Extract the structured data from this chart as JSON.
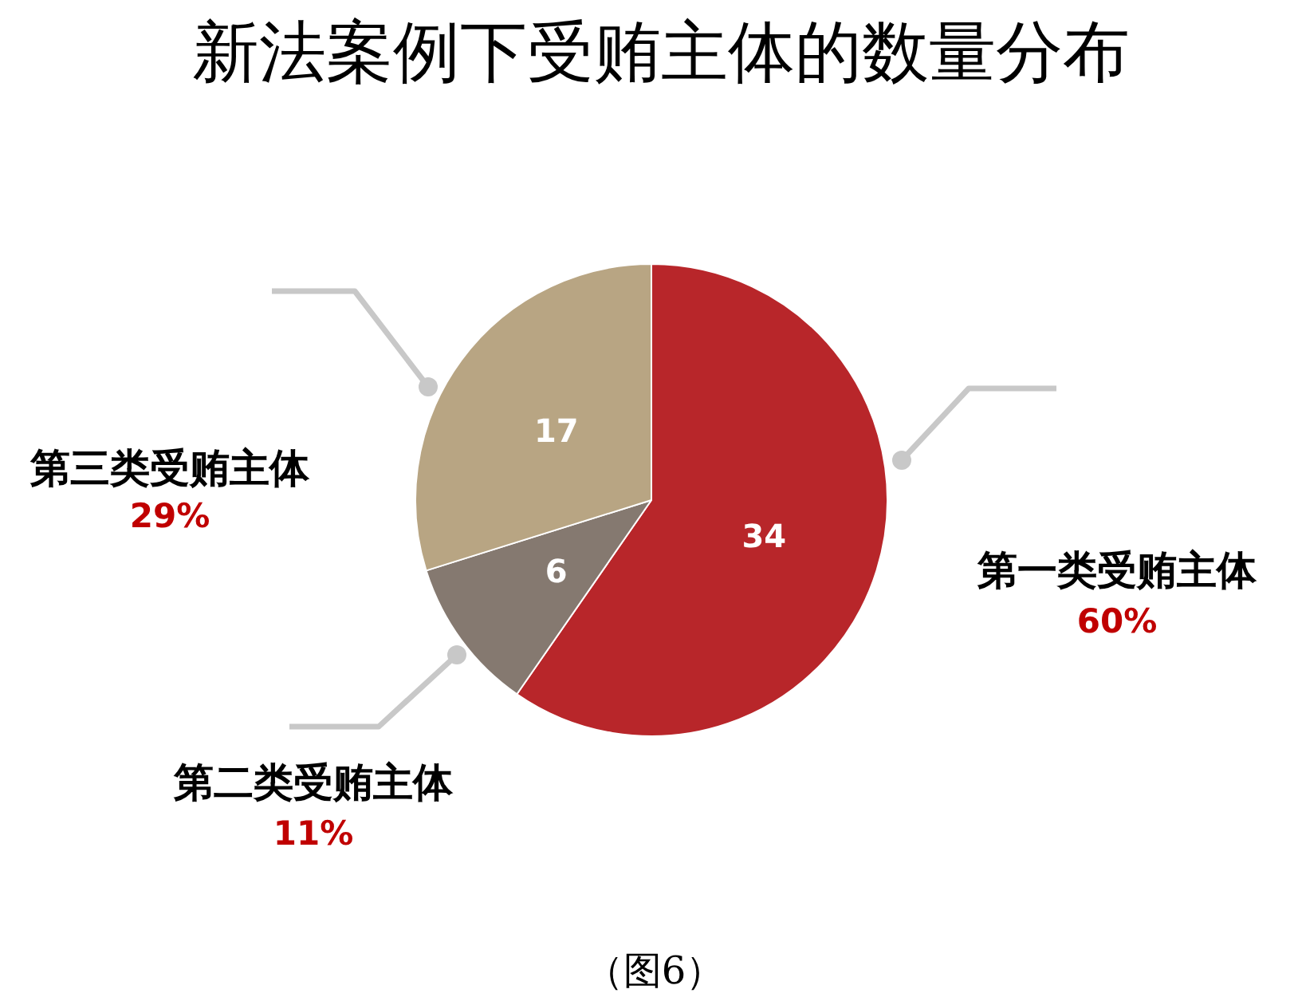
{
  "chart_data": {
    "type": "pie",
    "title": "新法案例下受贿主体的数量分布",
    "categories": [
      "第一类受贿主体",
      "第二类受贿主体",
      "第三类受贿主体"
    ],
    "values": [
      34,
      6,
      17
    ],
    "colors": [
      "#b8262a",
      "#857970",
      "#b8a583"
    ],
    "data_labels": true,
    "annotations": [
      "60%",
      "11%",
      "29%",
      "（图6）"
    ]
  }
}
